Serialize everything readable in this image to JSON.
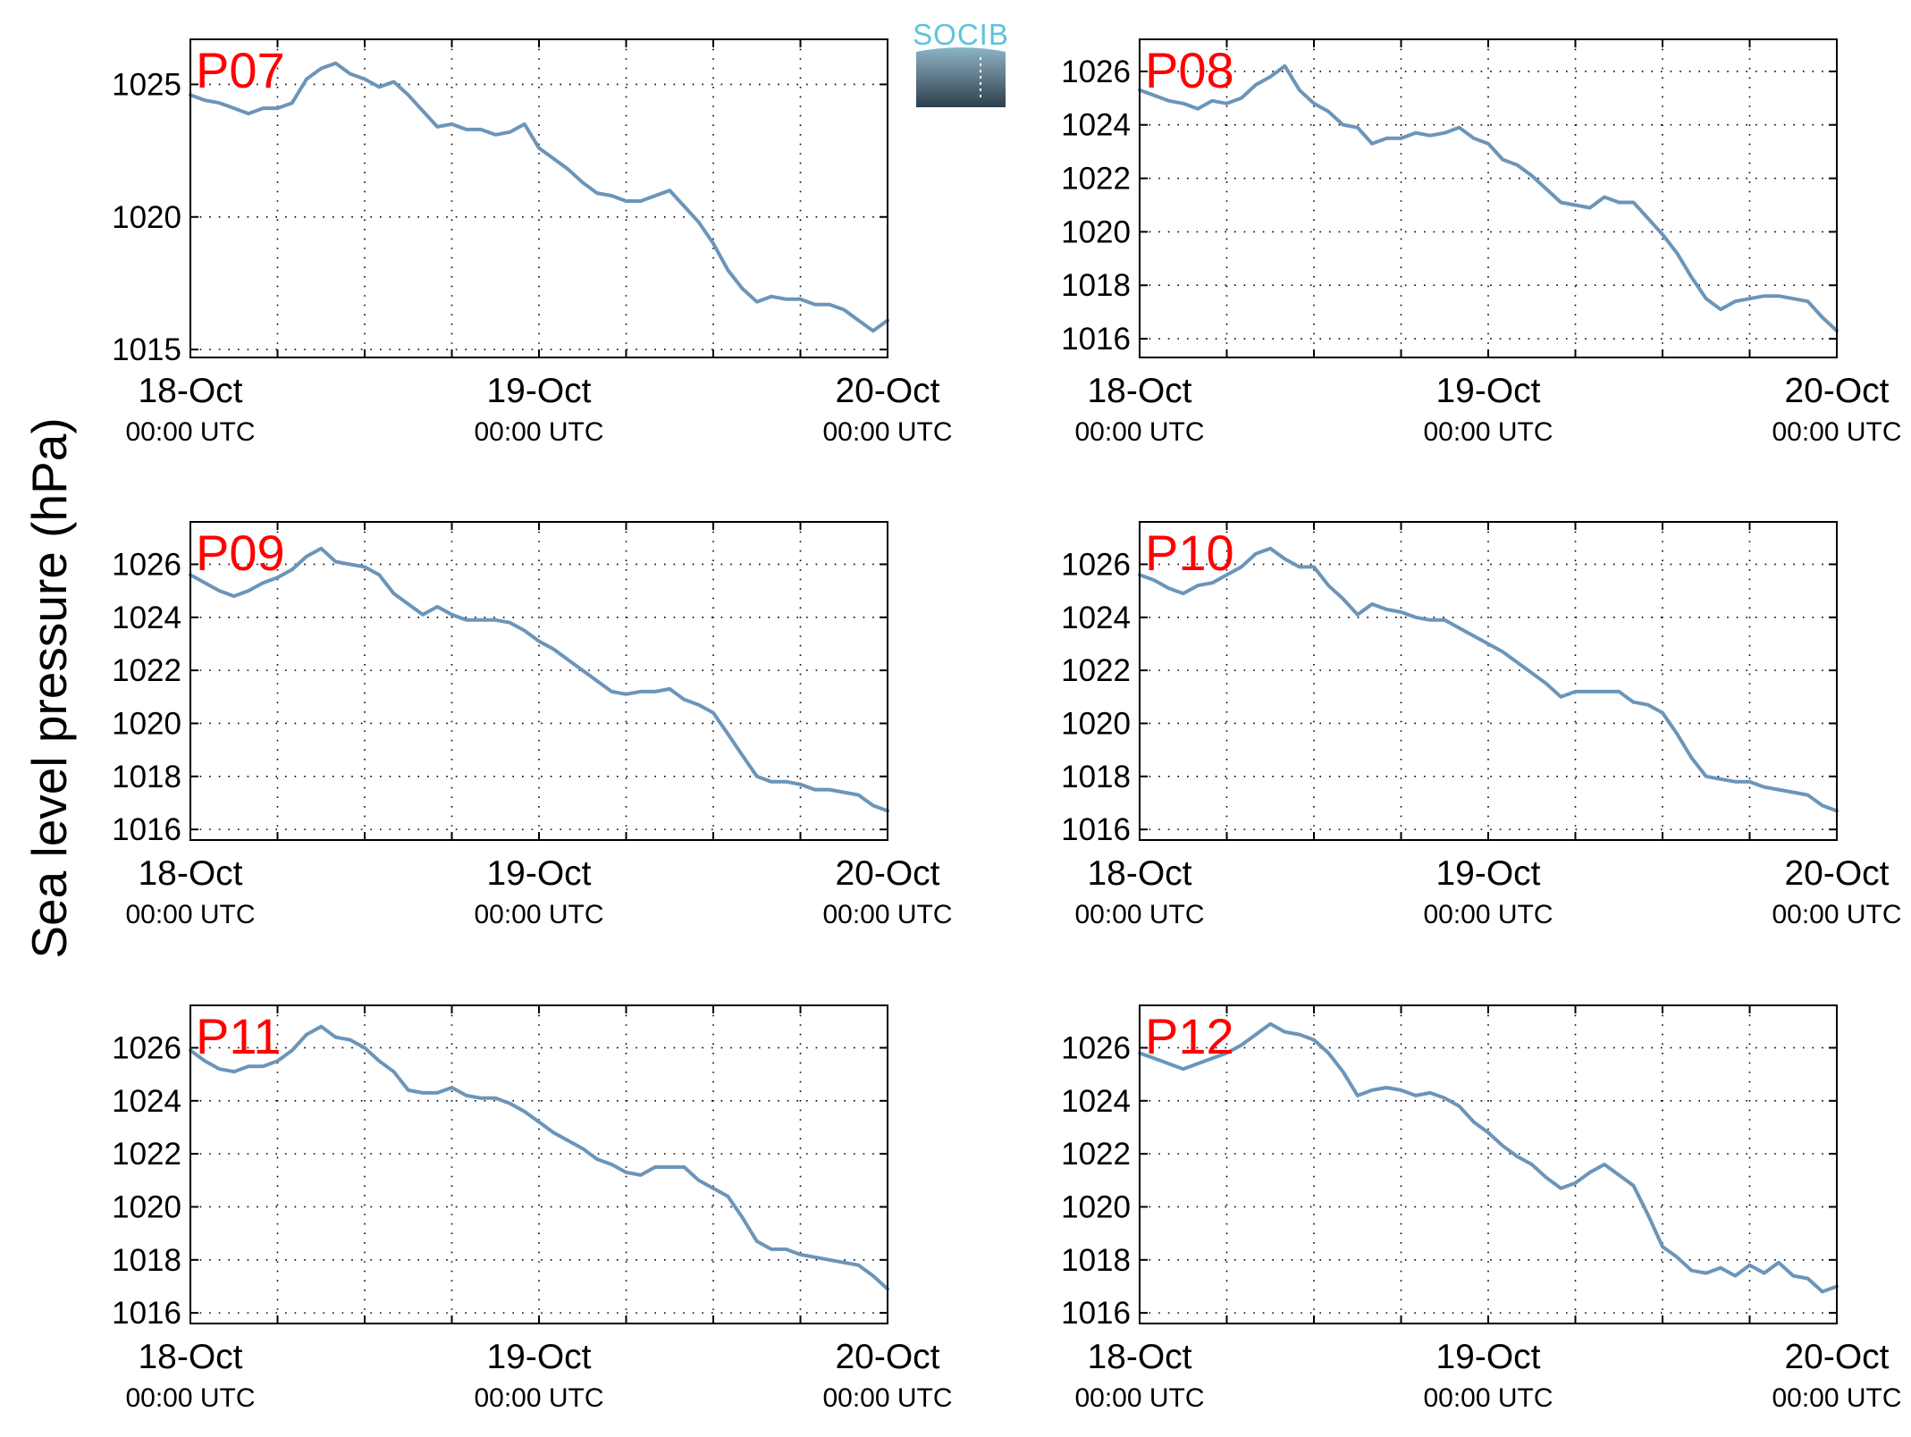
{
  "colors": {
    "series": "#6b95b9",
    "panel_label": "#ff0000",
    "logo_text": "#5fc3d8"
  },
  "logo": {
    "text": "SOCIB"
  },
  "ylabel": "Sea level pressure (hPa)",
  "chart_data": [
    {
      "type": "line",
      "label": "P07",
      "x_ticks": [
        {
          "date": "18-Oct",
          "time": "00:00 UTC"
        },
        {
          "date": "19-Oct",
          "time": "00:00 UTC"
        },
        {
          "date": "20-Oct",
          "time": "00:00 UTC"
        }
      ],
      "xlim_hours": [
        0,
        48
      ],
      "ylim": [
        1014.7,
        1026.7
      ],
      "yticks": [
        1015,
        1020,
        1025
      ],
      "ytick_labels": [
        "1015",
        "1020",
        "1025"
      ],
      "x_hours": [
        0,
        1,
        2,
        3,
        4,
        5,
        6,
        7,
        8,
        9,
        10,
        11,
        12,
        13,
        14,
        15,
        16,
        17,
        18,
        19,
        20,
        21,
        22,
        23,
        24,
        25,
        26,
        27,
        28,
        29,
        30,
        31,
        32,
        33,
        34,
        35,
        36,
        37,
        38,
        39,
        40,
        41,
        42,
        43,
        44,
        45,
        46,
        47,
        48
      ],
      "values": [
        1024.6,
        1024.4,
        1024.3,
        1024.1,
        1023.9,
        1024.1,
        1024.1,
        1024.3,
        1025.2,
        1025.6,
        1025.8,
        1025.4,
        1025.2,
        1024.9,
        1025.1,
        1024.6,
        1024.0,
        1023.4,
        1023.5,
        1023.3,
        1023.3,
        1023.1,
        1023.2,
        1023.5,
        1022.6,
        1022.2,
        1021.8,
        1021.3,
        1020.9,
        1020.8,
        1020.6,
        1020.6,
        1020.8,
        1021.0,
        1020.4,
        1019.8,
        1019.0,
        1018.0,
        1017.3,
        1016.8,
        1017.0,
        1016.9,
        1016.9,
        1016.7,
        1016.7,
        1016.5,
        1016.1,
        1015.7,
        1016.1
      ]
    },
    {
      "type": "line",
      "label": "P08",
      "x_ticks": [
        {
          "date": "18-Oct",
          "time": "00:00 UTC"
        },
        {
          "date": "19-Oct",
          "time": "00:00 UTC"
        },
        {
          "date": "20-Oct",
          "time": "00:00 UTC"
        }
      ],
      "xlim_hours": [
        0,
        48
      ],
      "ylim": [
        1015.3,
        1027.2
      ],
      "yticks": [
        1016,
        1018,
        1020,
        1022,
        1024,
        1026
      ],
      "ytick_labels": [
        "1016",
        "1018",
        "1020",
        "1022",
        "1024",
        "1026"
      ],
      "x_hours": [
        0,
        1,
        2,
        3,
        4,
        5,
        6,
        7,
        8,
        9,
        10,
        11,
        12,
        13,
        14,
        15,
        16,
        17,
        18,
        19,
        20,
        21,
        22,
        23,
        24,
        25,
        26,
        27,
        28,
        29,
        30,
        31,
        32,
        33,
        34,
        35,
        36,
        37,
        38,
        39,
        40,
        41,
        42,
        43,
        44,
        45,
        46,
        47,
        48
      ],
      "values": [
        1025.3,
        1025.1,
        1024.9,
        1024.8,
        1024.6,
        1024.9,
        1024.8,
        1025.0,
        1025.5,
        1025.8,
        1026.2,
        1025.3,
        1024.8,
        1024.5,
        1024.0,
        1023.9,
        1023.3,
        1023.5,
        1023.5,
        1023.7,
        1023.6,
        1023.7,
        1023.9,
        1023.5,
        1023.3,
        1022.7,
        1022.5,
        1022.1,
        1021.6,
        1021.1,
        1021.0,
        1020.9,
        1021.3,
        1021.1,
        1021.1,
        1020.5,
        1019.9,
        1019.2,
        1018.3,
        1017.5,
        1017.1,
        1017.4,
        1017.5,
        1017.6,
        1017.6,
        1017.5,
        1017.4,
        1016.8,
        1016.3
      ]
    },
    {
      "type": "line",
      "label": "P09",
      "x_ticks": [
        {
          "date": "18-Oct",
          "time": "00:00 UTC"
        },
        {
          "date": "19-Oct",
          "time": "00:00 UTC"
        },
        {
          "date": "20-Oct",
          "time": "00:00 UTC"
        }
      ],
      "xlim_hours": [
        0,
        48
      ],
      "ylim": [
        1015.6,
        1027.6
      ],
      "yticks": [
        1016,
        1018,
        1020,
        1022,
        1024,
        1026
      ],
      "ytick_labels": [
        "1016",
        "1018",
        "1020",
        "1022",
        "1024",
        "1026"
      ],
      "x_hours": [
        0,
        1,
        2,
        3,
        4,
        5,
        6,
        7,
        8,
        9,
        10,
        11,
        12,
        13,
        14,
        15,
        16,
        17,
        18,
        19,
        20,
        21,
        22,
        23,
        24,
        25,
        26,
        27,
        28,
        29,
        30,
        31,
        32,
        33,
        34,
        35,
        36,
        37,
        38,
        39,
        40,
        41,
        42,
        43,
        44,
        45,
        46,
        47,
        48
      ],
      "values": [
        1025.6,
        1025.3,
        1025.0,
        1024.8,
        1025.0,
        1025.3,
        1025.5,
        1025.8,
        1026.3,
        1026.6,
        1026.1,
        1026.0,
        1025.9,
        1025.6,
        1024.9,
        1024.5,
        1024.1,
        1024.4,
        1024.1,
        1023.9,
        1023.9,
        1023.9,
        1023.8,
        1023.5,
        1023.1,
        1022.8,
        1022.4,
        1022.0,
        1021.6,
        1021.2,
        1021.1,
        1021.2,
        1021.2,
        1021.3,
        1020.9,
        1020.7,
        1020.4,
        1019.6,
        1018.8,
        1018.0,
        1017.8,
        1017.8,
        1017.7,
        1017.5,
        1017.5,
        1017.4,
        1017.3,
        1016.9,
        1016.7
      ]
    },
    {
      "type": "line",
      "label": "P10",
      "x_ticks": [
        {
          "date": "18-Oct",
          "time": "00:00 UTC"
        },
        {
          "date": "19-Oct",
          "time": "00:00 UTC"
        },
        {
          "date": "20-Oct",
          "time": "00:00 UTC"
        }
      ],
      "xlim_hours": [
        0,
        48
      ],
      "ylim": [
        1015.6,
        1027.6
      ],
      "yticks": [
        1016,
        1018,
        1020,
        1022,
        1024,
        1026
      ],
      "ytick_labels": [
        "1016",
        "1018",
        "1020",
        "1022",
        "1024",
        "1026"
      ],
      "x_hours": [
        0,
        1,
        2,
        3,
        4,
        5,
        6,
        7,
        8,
        9,
        10,
        11,
        12,
        13,
        14,
        15,
        16,
        17,
        18,
        19,
        20,
        21,
        22,
        23,
        24,
        25,
        26,
        27,
        28,
        29,
        30,
        31,
        32,
        33,
        34,
        35,
        36,
        37,
        38,
        39,
        40,
        41,
        42,
        43,
        44,
        45,
        46,
        47,
        48
      ],
      "values": [
        1025.6,
        1025.4,
        1025.1,
        1024.9,
        1025.2,
        1025.3,
        1025.6,
        1025.9,
        1026.4,
        1026.6,
        1026.2,
        1025.9,
        1025.9,
        1025.2,
        1024.7,
        1024.1,
        1024.5,
        1024.3,
        1024.2,
        1024.0,
        1023.9,
        1023.9,
        1023.6,
        1023.3,
        1023.0,
        1022.7,
        1022.3,
        1021.9,
        1021.5,
        1021.0,
        1021.2,
        1021.2,
        1021.2,
        1021.2,
        1020.8,
        1020.7,
        1020.4,
        1019.6,
        1018.7,
        1018.0,
        1017.9,
        1017.8,
        1017.8,
        1017.6,
        1017.5,
        1017.4,
        1017.3,
        1016.9,
        1016.7
      ]
    },
    {
      "type": "line",
      "label": "P11",
      "x_ticks": [
        {
          "date": "18-Oct",
          "time": "00:00 UTC"
        },
        {
          "date": "19-Oct",
          "time": "00:00 UTC"
        },
        {
          "date": "20-Oct",
          "time": "00:00 UTC"
        }
      ],
      "xlim_hours": [
        0,
        48
      ],
      "ylim": [
        1015.6,
        1027.6
      ],
      "yticks": [
        1016,
        1018,
        1020,
        1022,
        1024,
        1026
      ],
      "ytick_labels": [
        "1016",
        "1018",
        "1020",
        "1022",
        "1024",
        "1026"
      ],
      "x_hours": [
        0,
        1,
        2,
        3,
        4,
        5,
        6,
        7,
        8,
        9,
        10,
        11,
        12,
        13,
        14,
        15,
        16,
        17,
        18,
        19,
        20,
        21,
        22,
        23,
        24,
        25,
        26,
        27,
        28,
        29,
        30,
        31,
        32,
        33,
        34,
        35,
        36,
        37,
        38,
        39,
        40,
        41,
        42,
        43,
        44,
        45,
        46,
        47,
        48
      ],
      "values": [
        1025.9,
        1025.5,
        1025.2,
        1025.1,
        1025.3,
        1025.3,
        1025.5,
        1025.9,
        1026.5,
        1026.8,
        1026.4,
        1026.3,
        1026.0,
        1025.5,
        1025.1,
        1024.4,
        1024.3,
        1024.3,
        1024.5,
        1024.2,
        1024.1,
        1024.1,
        1023.9,
        1023.6,
        1023.2,
        1022.8,
        1022.5,
        1022.2,
        1021.8,
        1021.6,
        1021.3,
        1021.2,
        1021.5,
        1021.5,
        1021.5,
        1021.0,
        1020.7,
        1020.4,
        1019.6,
        1018.7,
        1018.4,
        1018.4,
        1018.2,
        1018.1,
        1018.0,
        1017.9,
        1017.8,
        1017.4,
        1016.9
      ]
    },
    {
      "type": "line",
      "label": "P12",
      "x_ticks": [
        {
          "date": "18-Oct",
          "time": "00:00 UTC"
        },
        {
          "date": "19-Oct",
          "time": "00:00 UTC"
        },
        {
          "date": "20-Oct",
          "time": "00:00 UTC"
        }
      ],
      "xlim_hours": [
        0,
        48
      ],
      "ylim": [
        1015.6,
        1027.6
      ],
      "yticks": [
        1016,
        1018,
        1020,
        1022,
        1024,
        1026
      ],
      "ytick_labels": [
        "1016",
        "1018",
        "1020",
        "1022",
        "1024",
        "1026"
      ],
      "x_hours": [
        0,
        1,
        2,
        3,
        4,
        5,
        6,
        7,
        8,
        9,
        10,
        11,
        12,
        13,
        14,
        15,
        16,
        17,
        18,
        19,
        20,
        21,
        22,
        23,
        24,
        25,
        26,
        27,
        28,
        29,
        30,
        31,
        32,
        33,
        34,
        35,
        36,
        37,
        38,
        39,
        40,
        41,
        42,
        43,
        44,
        45,
        46,
        47,
        48
      ],
      "values": [
        1025.8,
        1025.6,
        1025.4,
        1025.2,
        1025.4,
        1025.6,
        1025.8,
        1026.1,
        1026.5,
        1026.9,
        1026.6,
        1026.5,
        1026.3,
        1025.8,
        1025.1,
        1024.2,
        1024.4,
        1024.5,
        1024.4,
        1024.2,
        1024.3,
        1024.1,
        1023.8,
        1023.2,
        1022.8,
        1022.3,
        1021.9,
        1021.6,
        1021.1,
        1020.7,
        1020.9,
        1021.3,
        1021.6,
        1021.2,
        1020.8,
        1019.7,
        1018.5,
        1018.1,
        1017.6,
        1017.5,
        1017.7,
        1017.4,
        1017.8,
        1017.5,
        1017.9,
        1017.4,
        1017.3,
        1016.8,
        1017.0
      ]
    }
  ]
}
